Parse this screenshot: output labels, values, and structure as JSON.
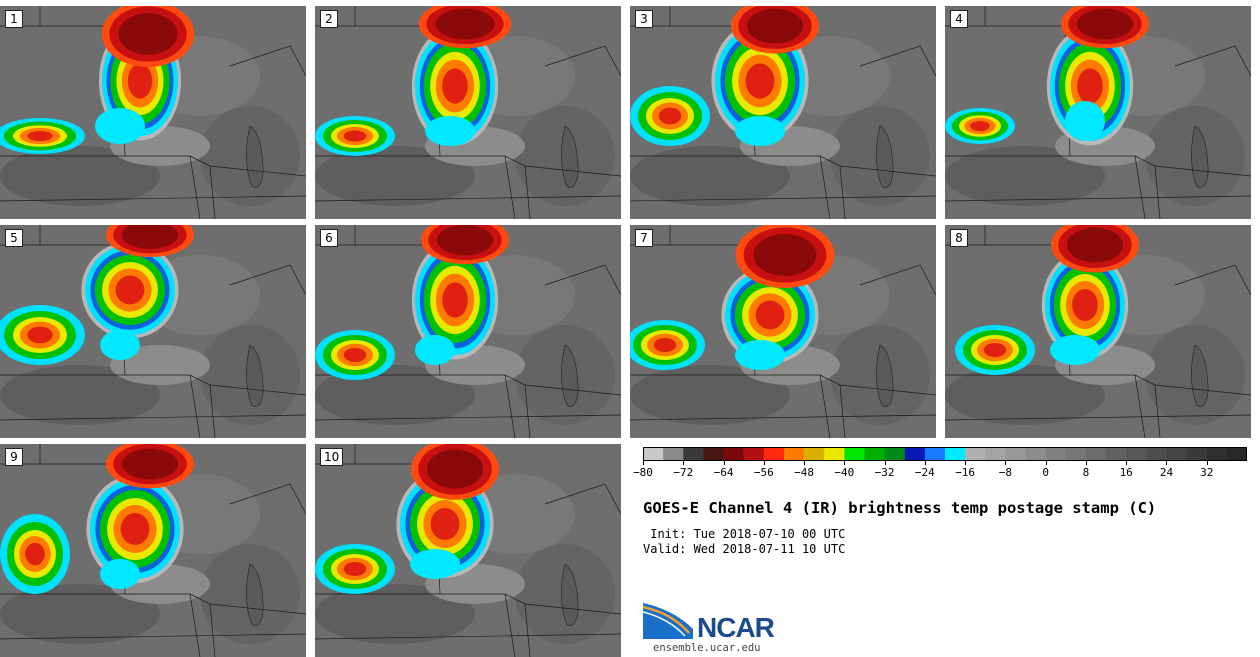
{
  "panels": [
    {
      "label": "1"
    },
    {
      "label": "2"
    },
    {
      "label": "3"
    },
    {
      "label": "4"
    },
    {
      "label": "5"
    },
    {
      "label": "6"
    },
    {
      "label": "7"
    },
    {
      "label": "8"
    },
    {
      "label": "9"
    },
    {
      "label": "10"
    }
  ],
  "colorbar": {
    "min": -80,
    "max": 40,
    "step": 4,
    "tick_labels": [
      "−80",
      "−72",
      "−64",
      "−56",
      "−48",
      "−40",
      "−32",
      "−24",
      "−16",
      "−8",
      "0",
      "8",
      "16",
      "24",
      "32"
    ],
    "tick_values": [
      -80,
      -72,
      -64,
      -56,
      -48,
      -40,
      -32,
      -24,
      -16,
      -8,
      0,
      8,
      16,
      24,
      32
    ],
    "colors": [
      "#c8c8c8",
      "#8a8a8a",
      "#3a3a3a",
      "#4a1515",
      "#7a0a0a",
      "#b41010",
      "#ff2a10",
      "#ff7a00",
      "#d8b000",
      "#e8e800",
      "#00e800",
      "#00b000",
      "#008a1a",
      "#0a1ab0",
      "#1a7aff",
      "#00eaff",
      "#b0b0b0",
      "#a4a4a4",
      "#989898",
      "#8c8c8c",
      "#808080",
      "#767676",
      "#6c6c6c",
      "#626262",
      "#585858",
      "#4e4e4e",
      "#444444",
      "#3a3a3a",
      "#303030",
      "#282828"
    ]
  },
  "title": "GOES-E Channel 4 (IR) brightness temp postage stamp (C)",
  "init": " Init: Tue 2018-07-10 00 UTC",
  "valid": "Valid: Wed 2018-07-11 10 UTC",
  "logo": {
    "text": "NCAR",
    "url": "ensemble.ucar.edu"
  }
}
